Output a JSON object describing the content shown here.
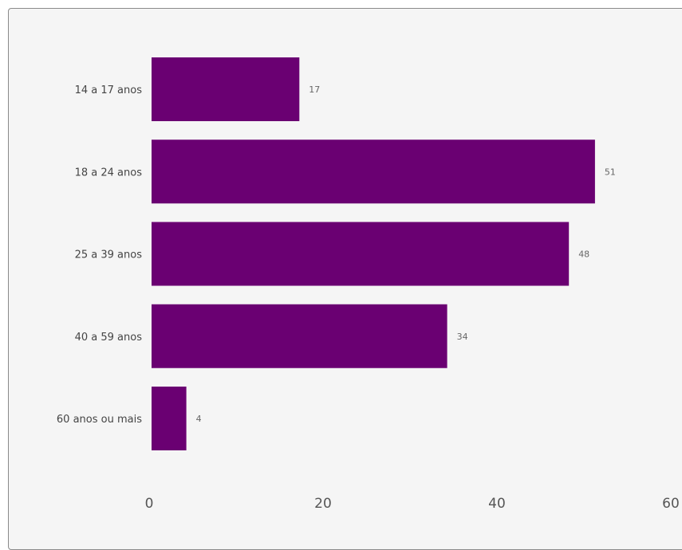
{
  "chart_data": {
    "type": "bar",
    "orientation": "horizontal",
    "categories": [
      "14 a 17 anos",
      "18 a 24 anos",
      "25 a 39 anos",
      "40 a 59 anos",
      "60 anos ou mais"
    ],
    "values": [
      17,
      51,
      48,
      34,
      4
    ],
    "data_labels": [
      "17",
      "51",
      "48",
      "34",
      "4"
    ],
    "xlim": [
      0,
      60
    ],
    "x_ticks": [
      0,
      20,
      40,
      60
    ],
    "x_tick_labels": [
      "0",
      "20",
      "40",
      "60"
    ],
    "grid": false,
    "legend": "none",
    "bar_color": "#6a0072",
    "title": "",
    "xlabel": "",
    "ylabel": ""
  }
}
